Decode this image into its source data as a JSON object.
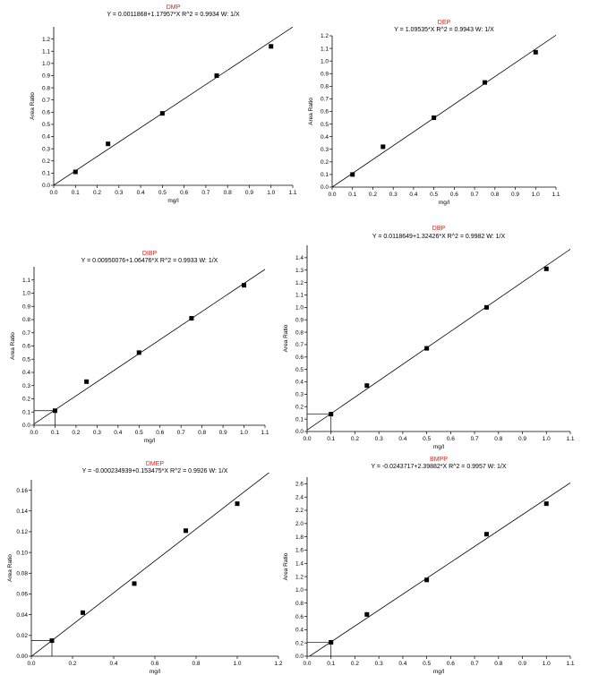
{
  "chart_data": [
    {
      "type": "scatter",
      "title": "DMP",
      "subtitle": "Y = 0.0011868+1.17957*X   R^2 = 0.9934   W: 1/X",
      "xlabel": "mg/l",
      "ylabel": "Area Ratio",
      "xlim": [
        0,
        1.1
      ],
      "ylim": [
        0,
        1.3
      ],
      "xticks": [
        "0.0",
        "0.1",
        "0.2",
        "0.3",
        "0.4",
        "0.5",
        "0.6",
        "0.7",
        "0.8",
        "0.9",
        "1.0",
        "1.1"
      ],
      "yticks": [
        "0.0",
        "0.1",
        "0.2",
        "0.3",
        "0.4",
        "0.5",
        "0.6",
        "0.7",
        "0.8",
        "0.9",
        "1.0",
        "1.1",
        "1.2"
      ],
      "fit": {
        "intercept": 0.0011868,
        "slope": 1.17957
      },
      "points": [
        {
          "x": 0.1,
          "y": 0.11
        },
        {
          "x": 0.25,
          "y": 0.34
        },
        {
          "x": 0.5,
          "y": 0.59
        },
        {
          "x": 0.75,
          "y": 0.9
        },
        {
          "x": 1.0,
          "y": 1.14
        }
      ],
      "lloq_marker": false,
      "grid": false
    },
    {
      "type": "scatter",
      "title": "DEP",
      "subtitle": "Y = 1.09535*X   R^2 = 0.9943   W: 1/X",
      "xlabel": "mg/l",
      "ylabel": "Area Ratio",
      "xlim": [
        0,
        1.1
      ],
      "ylim": [
        0,
        1.2
      ],
      "xticks": [
        "0.0",
        "0.1",
        "0.2",
        "0.3",
        "0.4",
        "0.5",
        "0.6",
        "0.7",
        "0.8",
        "0.9",
        "1.0",
        "1.1"
      ],
      "yticks": [
        "0.0",
        "0.1",
        "0.2",
        "0.3",
        "0.4",
        "0.5",
        "0.6",
        "0.7",
        "0.8",
        "0.9",
        "1.0",
        "1.1",
        "1.2"
      ],
      "fit": {
        "intercept": 0,
        "slope": 1.09535
      },
      "points": [
        {
          "x": 0.1,
          "y": 0.1
        },
        {
          "x": 0.25,
          "y": 0.32
        },
        {
          "x": 0.5,
          "y": 0.55
        },
        {
          "x": 0.75,
          "y": 0.83
        },
        {
          "x": 1.0,
          "y": 1.07
        }
      ],
      "lloq_marker": false,
      "grid": false
    },
    {
      "type": "scatter",
      "title": "DIBP",
      "subtitle": "Y = 0.00950076+1.06476*X   R^2 = 0.9933   W: 1/X",
      "xlabel": "mg/l",
      "ylabel": "Area Ratio",
      "xlim": [
        0,
        1.1
      ],
      "ylim": [
        0,
        1.2
      ],
      "xticks": [
        "0.0",
        "0.1",
        "0.2",
        "0.3",
        "0.4",
        "0.5",
        "0.6",
        "0.7",
        "0.8",
        "0.9",
        "1.0",
        "1.1"
      ],
      "yticks": [
        "0.0",
        "0.1",
        "0.2",
        "0.3",
        "0.4",
        "0.5",
        "0.6",
        "0.7",
        "0.8",
        "0.9",
        "1.0",
        "1.1"
      ],
      "fit": {
        "intercept": 0.00950076,
        "slope": 1.06476
      },
      "points": [
        {
          "x": 0.1,
          "y": 0.11
        },
        {
          "x": 0.25,
          "y": 0.33
        },
        {
          "x": 0.5,
          "y": 0.55
        },
        {
          "x": 0.75,
          "y": 0.81
        },
        {
          "x": 1.0,
          "y": 1.06
        }
      ],
      "lloq_marker": true,
      "grid": false
    },
    {
      "type": "scatter",
      "title": "DBP",
      "subtitle": "Y = 0.0118649+1.32426*X   R^2 = 0.9982   W: 1/X",
      "xlabel": "mg/l",
      "ylabel": "Area Ratio",
      "xlim": [
        0,
        1.1
      ],
      "ylim": [
        0,
        1.5
      ],
      "xticks": [
        "0.0",
        "0.1",
        "0.2",
        "0.3",
        "0.4",
        "0.5",
        "0.6",
        "0.7",
        "0.8",
        "0.9",
        "1.0",
        "1.1"
      ],
      "yticks": [
        "0.0",
        "0.1",
        "0.2",
        "0.3",
        "0.4",
        "0.5",
        "0.6",
        "0.7",
        "0.8",
        "0.9",
        "1.0",
        "1.1",
        "1.2",
        "1.3",
        "1.4"
      ],
      "fit": {
        "intercept": 0.0118649,
        "slope": 1.32426
      },
      "points": [
        {
          "x": 0.1,
          "y": 0.14
        },
        {
          "x": 0.25,
          "y": 0.37
        },
        {
          "x": 0.5,
          "y": 0.67
        },
        {
          "x": 0.75,
          "y": 1.0
        },
        {
          "x": 1.0,
          "y": 1.31
        }
      ],
      "lloq_marker": true,
      "grid": false
    },
    {
      "type": "scatter",
      "title": "DMEP",
      "subtitle": "Y = -0.000234939+0.153475*X   R^2 = 0.9926   W: 1/X",
      "xlabel": "mg/l",
      "ylabel": "Area Ratio",
      "xlim": [
        0,
        1.2
      ],
      "ylim": [
        0,
        0.17
      ],
      "xticks": [
        "0.0",
        "0.2",
        "0.4",
        "0.6",
        "0.8",
        "1.0",
        "1.2"
      ],
      "yticks": [
        "0.00",
        "0.02",
        "0.04",
        "0.06",
        "0.08",
        "0.10",
        "0.12",
        "0.14",
        "0.16"
      ],
      "fit": {
        "intercept": -0.000234939,
        "slope": 0.153475
      },
      "points": [
        {
          "x": 0.1,
          "y": 0.015
        },
        {
          "x": 0.25,
          "y": 0.042
        },
        {
          "x": 0.5,
          "y": 0.07
        },
        {
          "x": 0.75,
          "y": 0.121
        },
        {
          "x": 1.0,
          "y": 0.147
        }
      ],
      "lloq_marker": true,
      "grid": false
    },
    {
      "type": "scatter",
      "title": "BMPP",
      "subtitle": "Y = -0.0243717+2.39882*X   R^2 = 0.9957   W: 1/X",
      "xlabel": "mg/l",
      "ylabel": "Area Ratio",
      "xlim": [
        0,
        1.1
      ],
      "ylim": [
        0,
        2.7
      ],
      "xticks": [
        "0.0",
        "0.1",
        "0.2",
        "0.3",
        "0.4",
        "0.5",
        "0.6",
        "0.7",
        "0.8",
        "0.9",
        "1.0",
        "1.1"
      ],
      "yticks": [
        "0.0",
        "0.2",
        "0.4",
        "0.6",
        "0.8",
        "1.0",
        "1.2",
        "1.4",
        "1.6",
        "1.8",
        "2.0",
        "2.2",
        "2.4",
        "2.6"
      ],
      "fit": {
        "intercept": -0.0243717,
        "slope": 2.39882
      },
      "points": [
        {
          "x": 0.1,
          "y": 0.21
        },
        {
          "x": 0.25,
          "y": 0.63
        },
        {
          "x": 0.5,
          "y": 1.15
        },
        {
          "x": 0.75,
          "y": 1.84
        },
        {
          "x": 1.0,
          "y": 2.3
        }
      ],
      "lloq_marker": true,
      "grid": false
    }
  ]
}
